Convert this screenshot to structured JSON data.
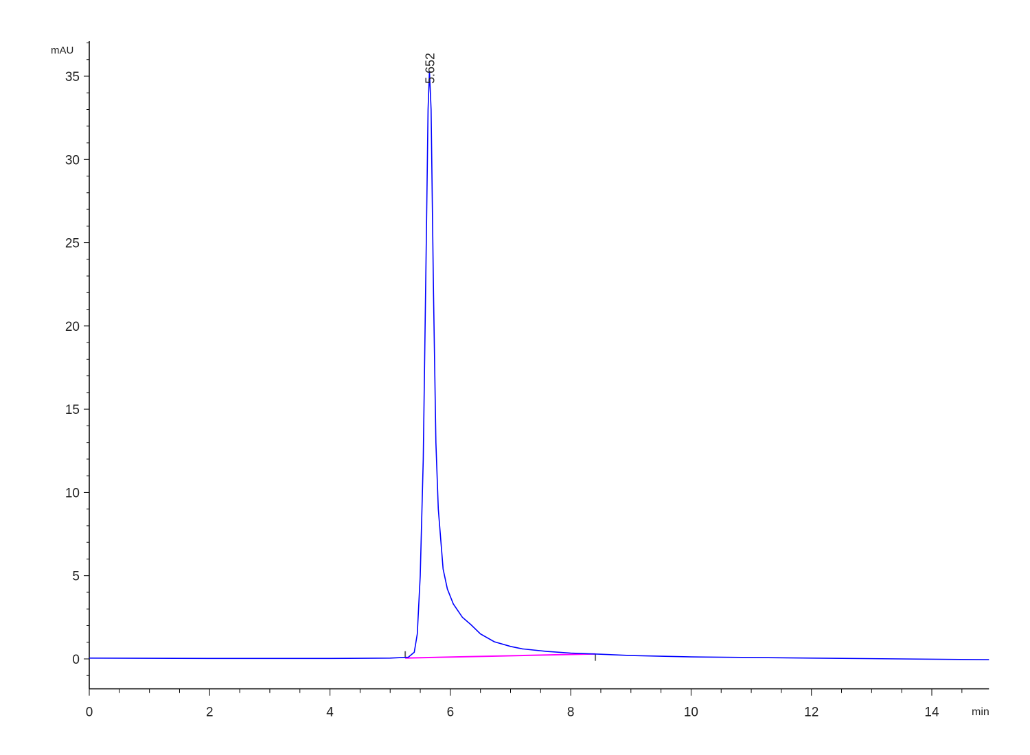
{
  "chart_data": {
    "type": "line",
    "title": "",
    "xlabel": "min",
    "ylabel": "mAU",
    "xlim": [
      0,
      14.95
    ],
    "ylim": [
      -1.8,
      37.1
    ],
    "x_ticks": [
      0,
      2,
      4,
      6,
      8,
      10,
      12,
      14
    ],
    "x_tick_labels": [
      "0",
      "2",
      "4",
      "6",
      "8",
      "10",
      "12",
      "14"
    ],
    "y_ticks": [
      0,
      5,
      10,
      15,
      20,
      25,
      30,
      35
    ],
    "y_tick_labels": [
      "0",
      "5",
      "10",
      "15",
      "20",
      "25",
      "30",
      "35"
    ],
    "grid": false,
    "series": [
      {
        "color": "#0000ff",
        "points": [
          [
            0,
            0.05
          ],
          [
            2,
            0.03
          ],
          [
            4,
            0.03
          ],
          [
            5.0,
            0.05
          ],
          [
            5.3,
            0.1
          ],
          [
            5.4,
            0.4
          ],
          [
            5.45,
            1.5
          ],
          [
            5.5,
            5
          ],
          [
            5.55,
            12
          ],
          [
            5.6,
            25
          ],
          [
            5.63,
            33
          ],
          [
            5.652,
            35.3
          ],
          [
            5.68,
            33
          ],
          [
            5.72,
            22
          ],
          [
            5.76,
            13
          ],
          [
            5.8,
            9
          ],
          [
            5.88,
            5.4
          ],
          [
            5.95,
            4.2
          ],
          [
            6.05,
            3.3
          ],
          [
            6.2,
            2.5
          ],
          [
            6.34,
            2.06
          ],
          [
            6.5,
            1.5
          ],
          [
            6.73,
            1.03
          ],
          [
            7.0,
            0.75
          ],
          [
            7.2,
            0.6
          ],
          [
            7.6,
            0.45
          ],
          [
            8.0,
            0.35
          ],
          [
            8.5,
            0.28
          ],
          [
            9.0,
            0.2
          ],
          [
            10.0,
            0.12
          ],
          [
            12.0,
            0.05
          ],
          [
            14.95,
            -0.05
          ]
        ]
      }
    ],
    "baseline": {
      "color": "#ff00ff",
      "start": [
        5.25,
        0.05
      ],
      "end": [
        8.41,
        0.3
      ]
    },
    "annotations": [
      {
        "text": "5.652",
        "x": 5.652,
        "y": 35.3
      }
    ]
  }
}
